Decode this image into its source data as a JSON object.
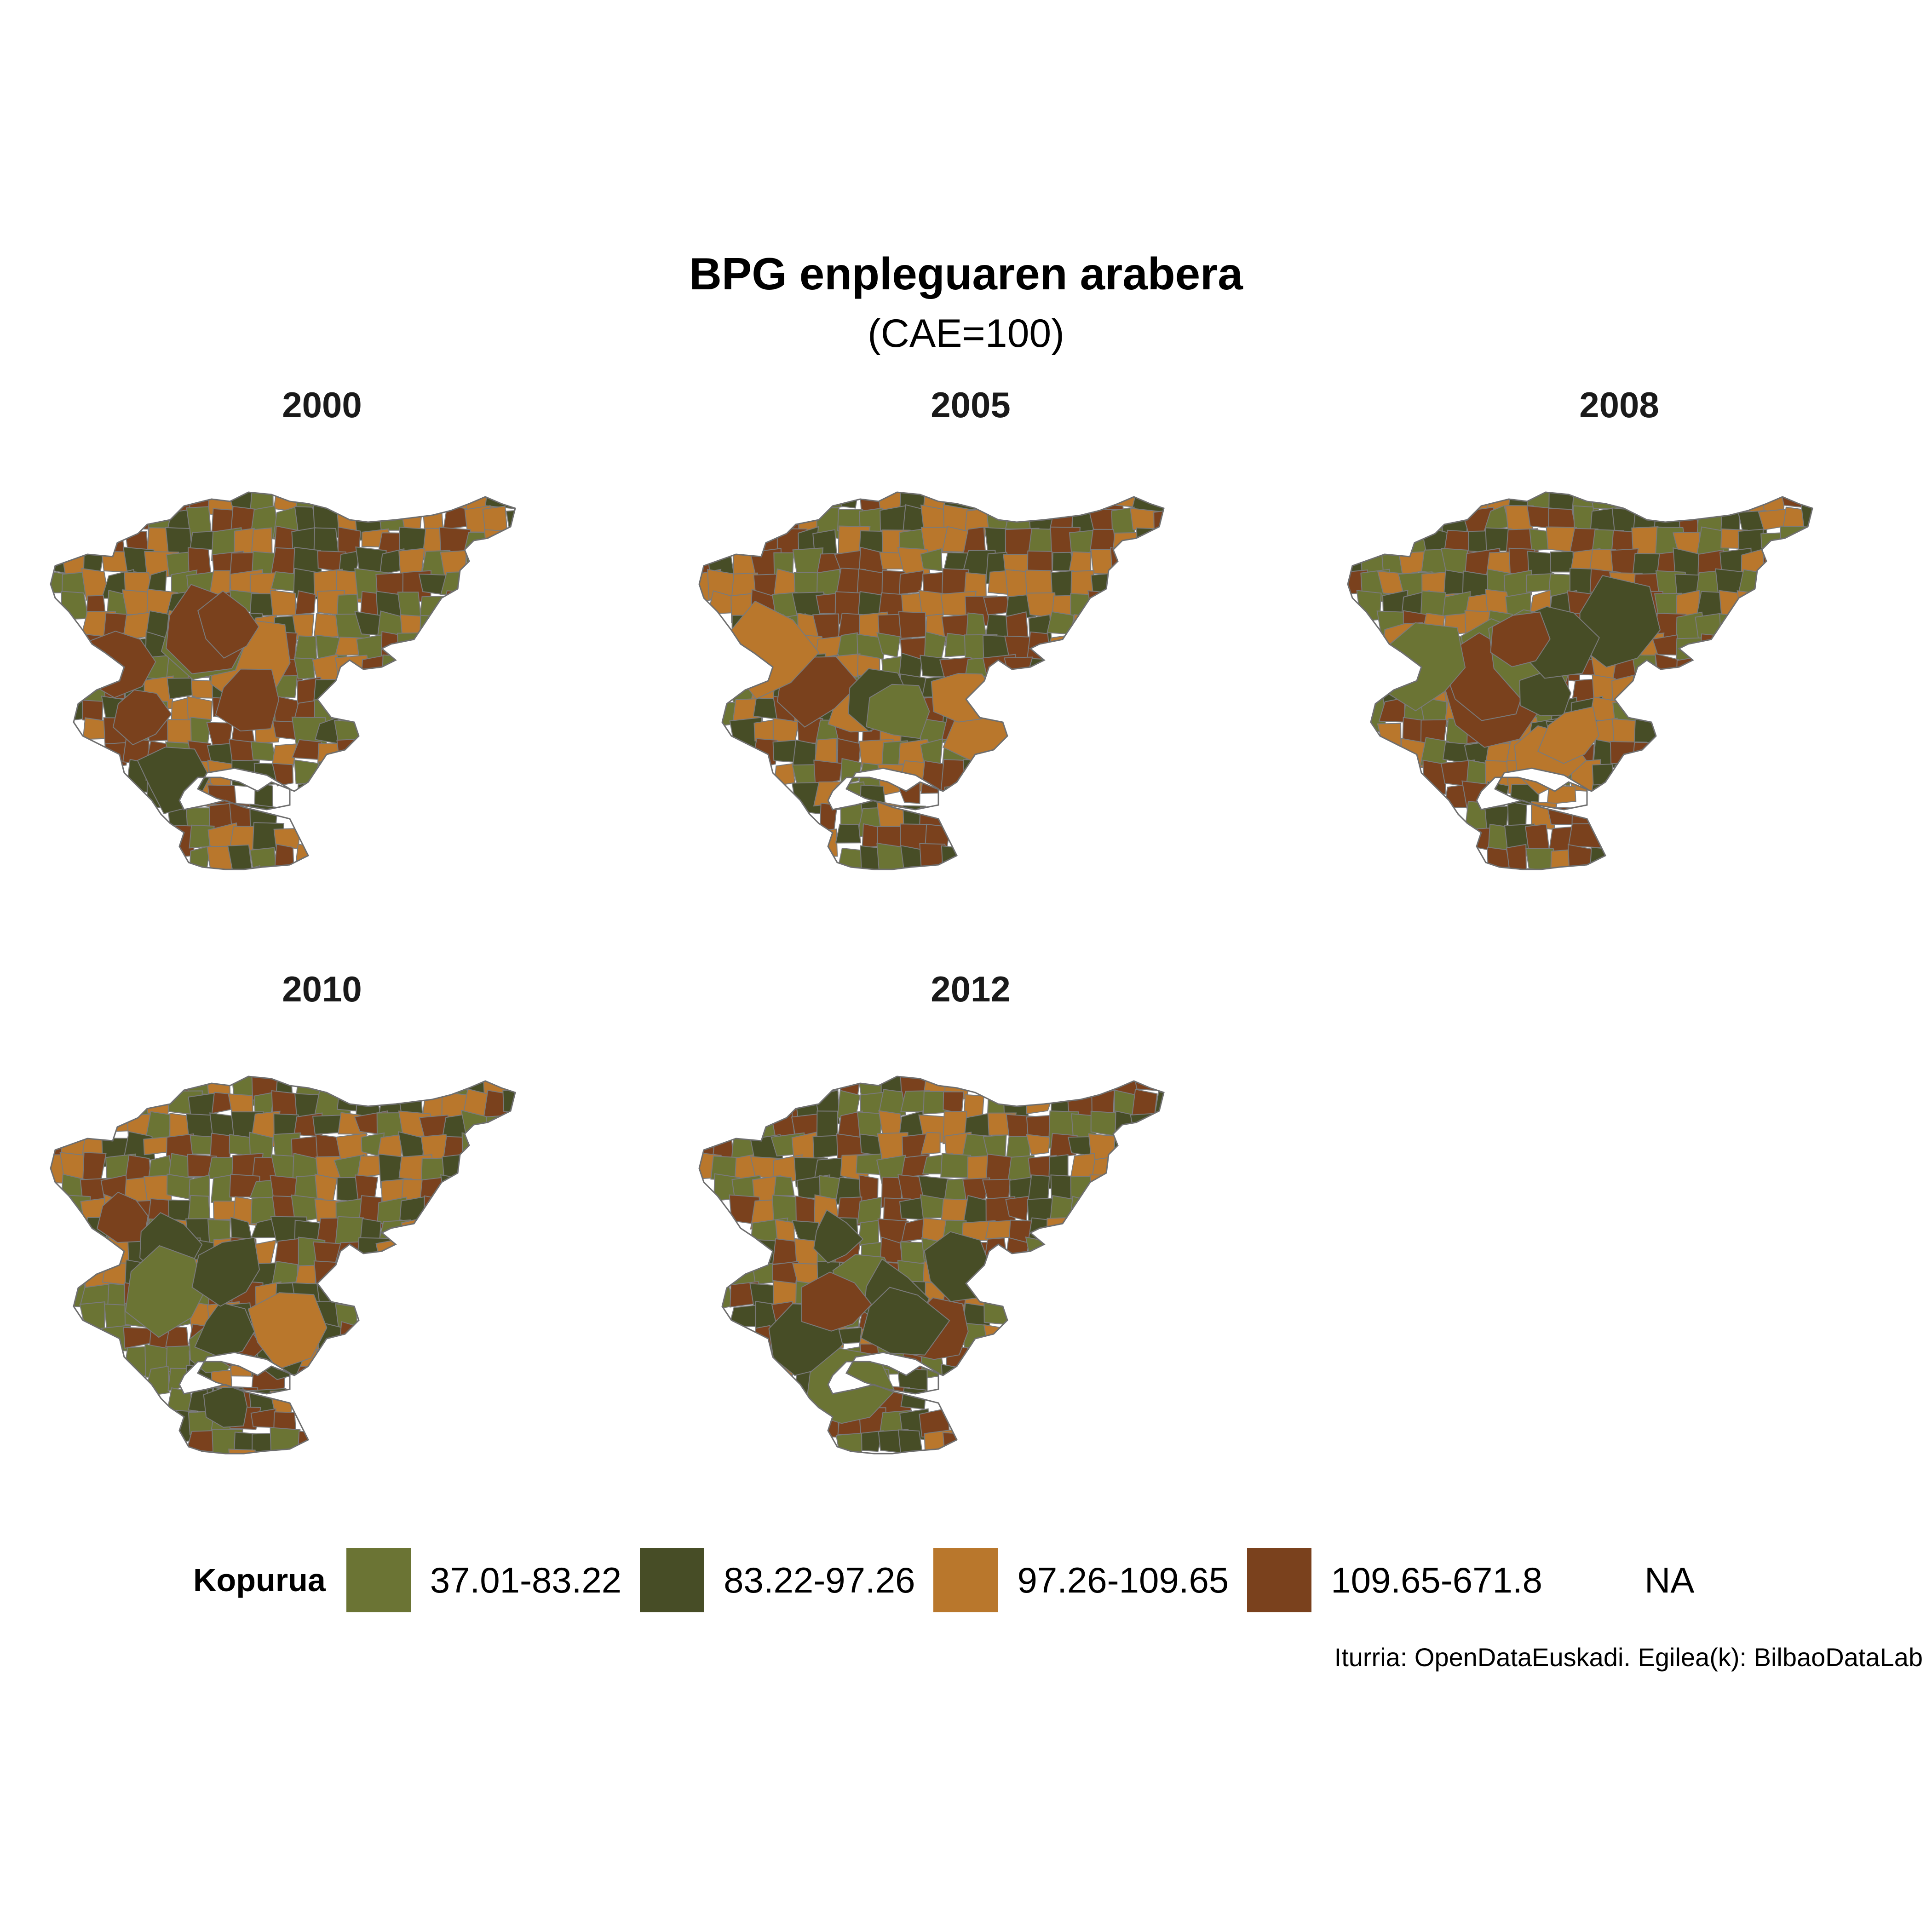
{
  "title": "BPG enpleguaren arabera",
  "subtitle": "(CAE=100)",
  "panels": [
    {
      "year": "2000",
      "palette": [
        0,
        1,
        2,
        3,
        2,
        3,
        0,
        1
      ]
    },
    {
      "year": "2005",
      "palette": [
        1,
        2,
        0,
        3,
        1,
        2,
        0,
        3
      ]
    },
    {
      "year": "2008",
      "palette": [
        2,
        3,
        0,
        1,
        2,
        0,
        3,
        1
      ]
    },
    {
      "year": "2010",
      "palette": [
        0,
        1,
        3,
        2,
        1,
        0,
        2,
        3
      ]
    },
    {
      "year": "2012",
      "palette": [
        1,
        0,
        2,
        3,
        0,
        1,
        2,
        3
      ]
    }
  ],
  "legend": {
    "title": "Kopurua",
    "items": [
      {
        "label": "37.01-83.22",
        "color": "#6b7434"
      },
      {
        "label": "83.22-97.26",
        "color": "#474d26"
      },
      {
        "label": "97.26-109.65",
        "color": "#b9772c"
      },
      {
        "label": "109.65-671.8",
        "color": "#7a411d"
      },
      {
        "label": "NA",
        "color": "none"
      }
    ]
  },
  "caption": "Iturria: OpenDataEuskadi. Egilea(k): BilbaoDataLab"
}
